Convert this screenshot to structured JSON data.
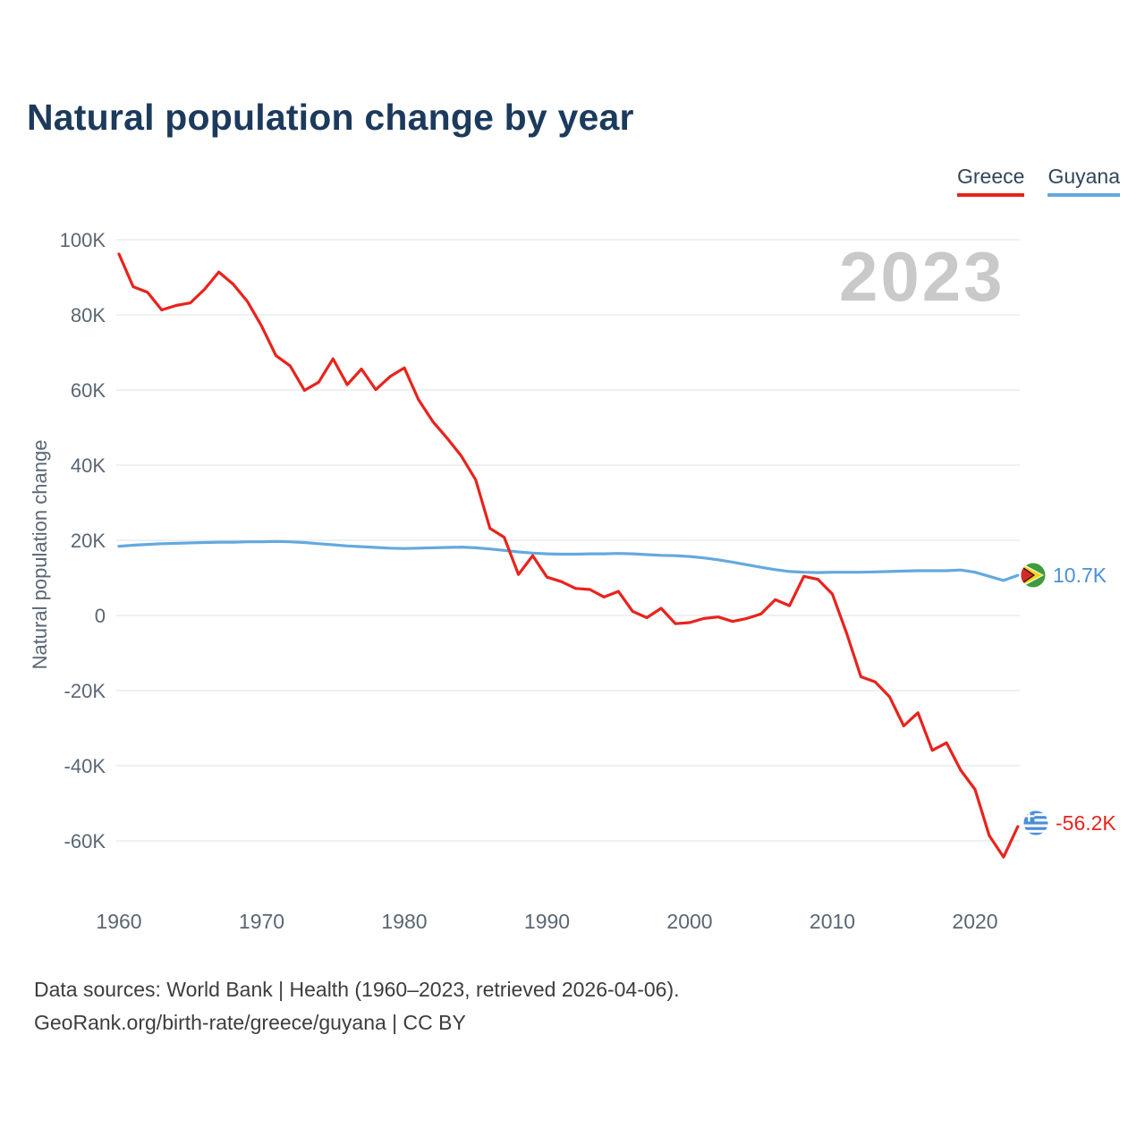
{
  "page": {
    "watermark": "2023",
    "footer_line1": "Data sources: World Bank | Health (1960–2023, retrieved 2026-04-06).",
    "footer_line2": "GeoRank.org/birth-rate/greece/guyana | CC BY"
  },
  "chart_data": {
    "type": "line",
    "title": "Natural population change by year",
    "xlabel": "",
    "ylabel": "Natural population change",
    "units": "thousands",
    "grid": true,
    "legend_position": "top-right",
    "watermark_year": "2023",
    "ylim": [
      -70,
      104
    ],
    "x_ticks": [
      1960,
      1970,
      1980,
      1990,
      2000,
      2010,
      2020
    ],
    "y_ticks": [
      100,
      80,
      60,
      40,
      20,
      0,
      -20,
      -40,
      -60
    ],
    "y_tick_labels": [
      "100K",
      "80K",
      "60K",
      "40K",
      "20K",
      "0",
      "-20K",
      "-40K",
      "-60K"
    ],
    "x": [
      1960,
      1961,
      1962,
      1963,
      1964,
      1965,
      1966,
      1967,
      1968,
      1969,
      1970,
      1971,
      1972,
      1973,
      1974,
      1975,
      1976,
      1977,
      1978,
      1979,
      1980,
      1981,
      1982,
      1983,
      1984,
      1985,
      1986,
      1987,
      1988,
      1989,
      1990,
      1991,
      1992,
      1993,
      1994,
      1995,
      1996,
      1997,
      1998,
      1999,
      2000,
      2001,
      2002,
      2003,
      2004,
      2005,
      2006,
      2007,
      2008,
      2009,
      2010,
      2011,
      2012,
      2013,
      2014,
      2015,
      2016,
      2017,
      2018,
      2019,
      2020,
      2021,
      2022,
      2023
    ],
    "series": [
      {
        "name": "Greece",
        "color": "#e8231c",
        "end_label": "-56.2K",
        "values": [
          96.2,
          87.5,
          86.0,
          81.3,
          82.5,
          83.2,
          86.8,
          91.4,
          88.2,
          83.6,
          77.0,
          69.2,
          66.4,
          59.9,
          62.1,
          68.3,
          61.4,
          65.6,
          60.1,
          63.6,
          65.9,
          57.4,
          51.6,
          47.2,
          42.4,
          36.1,
          23.2,
          20.8,
          10.9,
          15.9,
          10.2,
          9.0,
          7.2,
          6.9,
          4.9,
          6.4,
          1.1,
          -0.6,
          1.9,
          -2.2,
          -1.9,
          -0.8,
          -0.4,
          -1.6,
          -0.8,
          0.4,
          4.2,
          2.6,
          10.4,
          9.6,
          5.7,
          -4.7,
          -16.3,
          -17.7,
          -21.6,
          -29.4,
          -25.9,
          -35.9,
          -33.9,
          -41.2,
          -46.3,
          -58.6,
          -64.3,
          -56.2
        ]
      },
      {
        "name": "Guyana",
        "color": "#64a9dd",
        "end_label": "10.7K",
        "values": [
          18.4,
          18.7,
          18.9,
          19.1,
          19.2,
          19.3,
          19.4,
          19.5,
          19.5,
          19.6,
          19.6,
          19.7,
          19.6,
          19.4,
          19.1,
          18.8,
          18.5,
          18.3,
          18.1,
          17.9,
          17.8,
          17.9,
          18.0,
          18.1,
          18.2,
          18.0,
          17.7,
          17.3,
          16.9,
          16.6,
          16.4,
          16.3,
          16.3,
          16.4,
          16.4,
          16.5,
          16.4,
          16.2,
          16.0,
          15.9,
          15.7,
          15.3,
          14.8,
          14.2,
          13.5,
          12.8,
          12.2,
          11.7,
          11.5,
          11.4,
          11.5,
          11.5,
          11.5,
          11.6,
          11.7,
          11.8,
          11.9,
          11.9,
          11.9,
          12.1,
          11.5,
          10.4,
          9.3,
          10.7
        ]
      }
    ]
  }
}
